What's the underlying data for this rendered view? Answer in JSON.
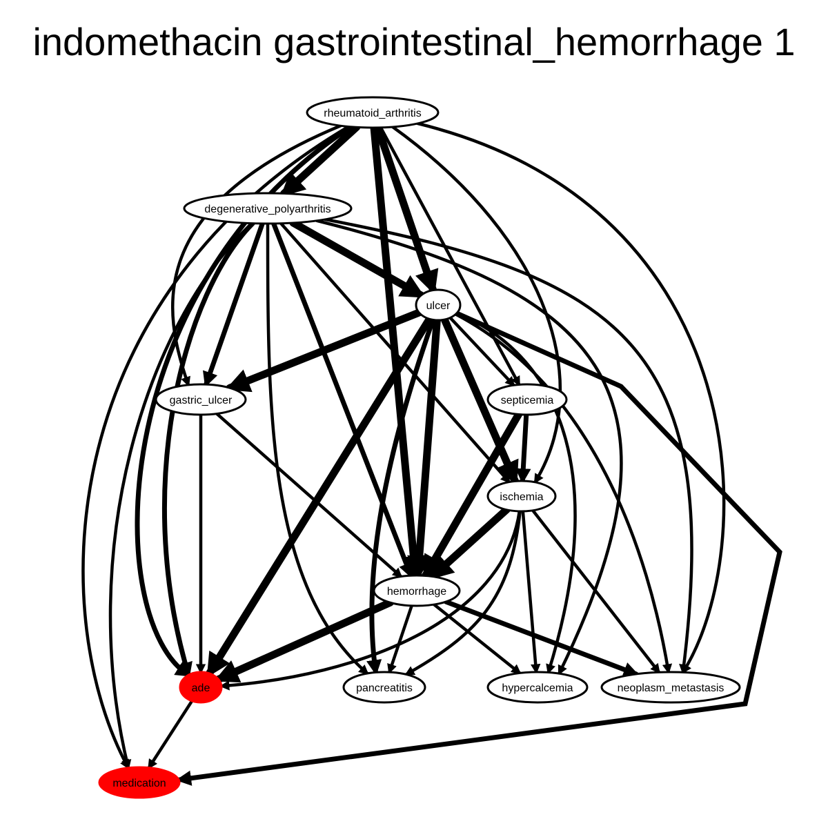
{
  "title": "indomethacin gastrointestinal_hemorrhage 1",
  "colors": {
    "highlight": "#ff0000",
    "edge": "#000000",
    "node_fill": "#ffffff"
  },
  "nodes": {
    "rheumatoid_arthritis": {
      "label": "rheumatoid_arthritis",
      "highlight": false
    },
    "degenerative_polyarthritis": {
      "label": "degenerative_polyarthritis",
      "highlight": false
    },
    "ulcer": {
      "label": "ulcer",
      "highlight": false
    },
    "gastric_ulcer": {
      "label": "gastric_ulcer",
      "highlight": false
    },
    "septicemia": {
      "label": "septicemia",
      "highlight": false
    },
    "ischemia": {
      "label": "ischemia",
      "highlight": false
    },
    "hemorrhage": {
      "label": "hemorrhage",
      "highlight": false
    },
    "ade": {
      "label": "ade",
      "highlight": true
    },
    "pancreatitis": {
      "label": "pancreatitis",
      "highlight": false
    },
    "hypercalcemia": {
      "label": "hypercalcemia",
      "highlight": false
    },
    "neoplasm_metastasis": {
      "label": "neoplasm_metastasis",
      "highlight": false
    },
    "medication": {
      "label": "medication",
      "highlight": true
    }
  },
  "edges": [
    {
      "from": "rheumatoid_arthritis",
      "to": "degenerative_polyarthritis",
      "weight": "heavy"
    },
    {
      "from": "rheumatoid_arthritis",
      "to": "ulcer",
      "weight": "heavy"
    },
    {
      "from": "rheumatoid_arthritis",
      "to": "hemorrhage",
      "weight": "heavy"
    },
    {
      "from": "rheumatoid_arthritis",
      "to": "septicemia",
      "weight": "normal"
    },
    {
      "from": "rheumatoid_arthritis",
      "to": "ischemia",
      "weight": "normal"
    },
    {
      "from": "rheumatoid_arthritis",
      "to": "gastric_ulcer",
      "weight": "normal"
    },
    {
      "from": "rheumatoid_arthritis",
      "to": "ade",
      "weight": "medium"
    },
    {
      "from": "rheumatoid_arthritis",
      "to": "medication",
      "weight": "normal"
    },
    {
      "from": "rheumatoid_arthritis",
      "to": "neoplasm_metastasis",
      "weight": "normal"
    },
    {
      "from": "degenerative_polyarthritis",
      "to": "ulcer",
      "weight": "heavy"
    },
    {
      "from": "degenerative_polyarthritis",
      "to": "gastric_ulcer",
      "weight": "medium"
    },
    {
      "from": "degenerative_polyarthritis",
      "to": "hemorrhage",
      "weight": "medium"
    },
    {
      "from": "degenerative_polyarthritis",
      "to": "ischemia",
      "weight": "normal"
    },
    {
      "from": "degenerative_polyarthritis",
      "to": "pancreatitis",
      "weight": "normal"
    },
    {
      "from": "degenerative_polyarthritis",
      "to": "ade",
      "weight": "medium"
    },
    {
      "from": "degenerative_polyarthritis",
      "to": "medication",
      "weight": "normal"
    },
    {
      "from": "degenerative_polyarthritis",
      "to": "hypercalcemia",
      "weight": "normal"
    },
    {
      "from": "degenerative_polyarthritis",
      "to": "neoplasm_metastasis",
      "weight": "normal"
    },
    {
      "from": "ulcer",
      "to": "gastric_ulcer",
      "weight": "heavy"
    },
    {
      "from": "ulcer",
      "to": "hemorrhage",
      "weight": "heavy"
    },
    {
      "from": "ulcer",
      "to": "ischemia",
      "weight": "heavy"
    },
    {
      "from": "ulcer",
      "to": "septicemia",
      "weight": "normal"
    },
    {
      "from": "ulcer",
      "to": "ade",
      "weight": "heavy"
    },
    {
      "from": "ulcer",
      "to": "pancreatitis",
      "weight": "medium"
    },
    {
      "from": "ulcer",
      "to": "hypercalcemia",
      "weight": "normal"
    },
    {
      "from": "ulcer",
      "to": "neoplasm_metastasis",
      "weight": "normal"
    },
    {
      "from": "ulcer",
      "to": "medication",
      "weight": "medium"
    },
    {
      "from": "gastric_ulcer",
      "to": "ade",
      "weight": "normal"
    },
    {
      "from": "gastric_ulcer",
      "to": "hemorrhage",
      "weight": "normal"
    },
    {
      "from": "septicemia",
      "to": "ischemia",
      "weight": "medium"
    },
    {
      "from": "septicemia",
      "to": "hemorrhage",
      "weight": "heavy"
    },
    {
      "from": "ischemia",
      "to": "hemorrhage",
      "weight": "heavy"
    },
    {
      "from": "ischemia",
      "to": "ade",
      "weight": "normal"
    },
    {
      "from": "ischemia",
      "to": "pancreatitis",
      "weight": "normal"
    },
    {
      "from": "ischemia",
      "to": "hypercalcemia",
      "weight": "normal"
    },
    {
      "from": "ischemia",
      "to": "neoplasm_metastasis",
      "weight": "normal"
    },
    {
      "from": "hemorrhage",
      "to": "ade",
      "weight": "heavy"
    },
    {
      "from": "hemorrhage",
      "to": "pancreatitis",
      "weight": "normal"
    },
    {
      "from": "hemorrhage",
      "to": "hypercalcemia",
      "weight": "normal"
    },
    {
      "from": "hemorrhage",
      "to": "neoplasm_metastasis",
      "weight": "medium"
    },
    {
      "from": "ade",
      "to": "medication",
      "weight": "normal"
    }
  ]
}
